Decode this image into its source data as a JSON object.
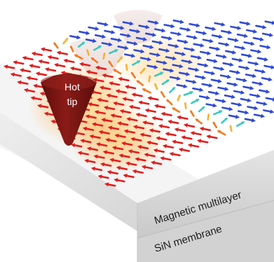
{
  "labels": {
    "tip_line1": "Hot",
    "tip_line2": "tip",
    "layer_top": "Magnetic multilayer",
    "layer_bottom": "SiN membrane"
  },
  "colors": {
    "background": "#ffffff",
    "surface_top": "#f3f3f3",
    "side_face": "#dcdcdc",
    "front_face": "#cfcfcf",
    "tip": "#7a1512",
    "tip_ghost": "#e7d6d4",
    "spin_red": "#e01e1e",
    "spin_orange": "#f07a22",
    "spin_yellow": "#f3b334",
    "spin_cyan": "#3cc8c2",
    "spin_blue": "#2f4bd6",
    "glow": "#ffb347"
  },
  "icons": [
    "hot-tip-cone",
    "spin-arrow"
  ]
}
